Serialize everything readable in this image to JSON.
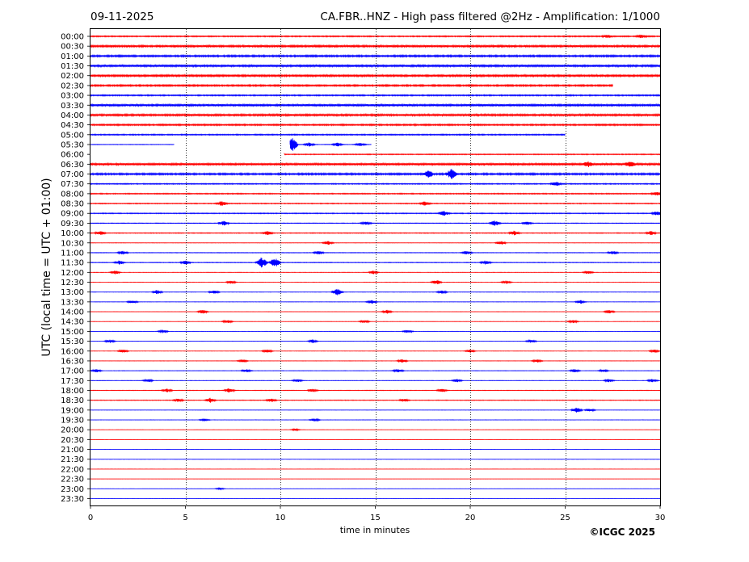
{
  "header": {
    "date": "09-11-2025",
    "title": "CA.FBR..HNZ - High pass filtered @2Hz - Amplification: 1/1000"
  },
  "footer": {
    "copyright": "©ICGC 2025"
  },
  "chart_data": {
    "type": "line",
    "title": "CA.FBR..HNZ - High pass filtered @2Hz - Amplification: 1/1000",
    "xlabel": "time in minutes",
    "ylabel": "UTC (local time = UTC + 01:00)",
    "xlim": [
      0,
      30
    ],
    "x_ticks": [
      0,
      5,
      10,
      15,
      20,
      25,
      30
    ],
    "vertical_grid_at": [
      5,
      10,
      15,
      20,
      25
    ],
    "grid_style": "dotted",
    "row_labels": [
      "00:00",
      "00:30",
      "01:00",
      "01:30",
      "02:00",
      "02:30",
      "03:00",
      "03:30",
      "04:00",
      "04:30",
      "05:00",
      "05:30",
      "06:00",
      "06:30",
      "07:00",
      "07:30",
      "08:00",
      "08:30",
      "09:00",
      "09:30",
      "10:00",
      "10:30",
      "11:00",
      "11:30",
      "12:00",
      "12:30",
      "13:00",
      "13:30",
      "14:00",
      "14:30",
      "15:00",
      "15:30",
      "16:00",
      "16:30",
      "17:00",
      "17:30",
      "18:00",
      "18:30",
      "19:00",
      "19:30",
      "20:00",
      "20:30",
      "21:00",
      "21:30",
      "22:00",
      "22:30",
      "23:00",
      "23:30"
    ],
    "series_colors": [
      "#ff0000",
      "#0000ff"
    ],
    "row_noise_level": [
      0.45,
      0.8,
      0.7,
      0.85,
      0.8,
      0.65,
      0.5,
      0.85,
      0.8,
      0.6,
      0.45,
      0.2,
      0.35,
      0.85,
      0.7,
      0.4,
      0.4,
      0.35,
      0.35,
      0.25,
      0.3,
      0.15,
      0.2,
      0.25,
      0.15,
      0.12,
      0.15,
      0.12,
      0.12,
      0.12,
      0.12,
      0.12,
      0.12,
      0.12,
      0.15,
      0.15,
      0.2,
      0.25,
      0.12,
      0.1,
      0.08,
      0.06,
      0.06,
      0.06,
      0.06,
      0.06,
      0.06,
      0.06
    ],
    "gaps": [
      {
        "row": 5,
        "x": [
          27.5,
          30
        ]
      },
      {
        "row": 10,
        "x": [
          25,
          30
        ]
      },
      {
        "row": 11,
        "x": [
          4.4,
          10.5
        ]
      },
      {
        "row": 11,
        "x": [
          14.8,
          30
        ]
      },
      {
        "row": 12,
        "x": [
          0,
          10.2
        ]
      }
    ],
    "events": [
      {
        "row": 0,
        "x": 27.2,
        "amp": 0.5
      },
      {
        "row": 0,
        "x": 29.0,
        "amp": 0.5
      },
      {
        "row": 11,
        "x": 10.6,
        "amp": 2.5
      },
      {
        "row": 11,
        "x": 11.5,
        "amp": 0.6
      },
      {
        "row": 11,
        "x": 13.0,
        "amp": 0.6
      },
      {
        "row": 11,
        "x": 14.2,
        "amp": 0.6
      },
      {
        "row": 13,
        "x": 26.2,
        "amp": 0.8
      },
      {
        "row": 13,
        "x": 28.4,
        "amp": 0.8
      },
      {
        "row": 14,
        "x": 17.8,
        "amp": 1.0
      },
      {
        "row": 14,
        "x": 19.0,
        "amp": 1.5
      },
      {
        "row": 15,
        "x": 24.5,
        "amp": 0.6
      },
      {
        "row": 16,
        "x": 29.8,
        "amp": 0.6
      },
      {
        "row": 17,
        "x": 6.9,
        "amp": 0.7
      },
      {
        "row": 17,
        "x": 17.6,
        "amp": 0.7
      },
      {
        "row": 18,
        "x": 18.6,
        "amp": 0.7
      },
      {
        "row": 18,
        "x": 29.8,
        "amp": 0.6
      },
      {
        "row": 19,
        "x": 7.0,
        "amp": 0.7
      },
      {
        "row": 19,
        "x": 14.5,
        "amp": 0.6
      },
      {
        "row": 19,
        "x": 21.3,
        "amp": 0.8
      },
      {
        "row": 19,
        "x": 23.0,
        "amp": 0.6
      },
      {
        "row": 20,
        "x": 0.5,
        "amp": 0.6
      },
      {
        "row": 20,
        "x": 9.3,
        "amp": 0.6
      },
      {
        "row": 20,
        "x": 22.3,
        "amp": 0.7
      },
      {
        "row": 20,
        "x": 29.5,
        "amp": 0.6
      },
      {
        "row": 21,
        "x": 12.5,
        "amp": 0.6
      },
      {
        "row": 21,
        "x": 21.6,
        "amp": 0.6
      },
      {
        "row": 22,
        "x": 1.7,
        "amp": 0.6
      },
      {
        "row": 22,
        "x": 12.0,
        "amp": 0.6
      },
      {
        "row": 22,
        "x": 19.8,
        "amp": 0.6
      },
      {
        "row": 22,
        "x": 27.5,
        "amp": 0.6
      },
      {
        "row": 23,
        "x": 1.5,
        "amp": 0.6
      },
      {
        "row": 23,
        "x": 5.0,
        "amp": 0.6
      },
      {
        "row": 23,
        "x": 9.0,
        "amp": 1.8
      },
      {
        "row": 23,
        "x": 9.7,
        "amp": 1.5
      },
      {
        "row": 23,
        "x": 20.8,
        "amp": 0.6
      },
      {
        "row": 24,
        "x": 1.3,
        "amp": 0.6
      },
      {
        "row": 24,
        "x": 14.9,
        "amp": 0.5
      },
      {
        "row": 24,
        "x": 26.2,
        "amp": 0.5
      },
      {
        "row": 25,
        "x": 7.4,
        "amp": 0.5
      },
      {
        "row": 25,
        "x": 18.2,
        "amp": 0.7
      },
      {
        "row": 25,
        "x": 21.9,
        "amp": 0.5
      },
      {
        "row": 26,
        "x": 3.5,
        "amp": 0.6
      },
      {
        "row": 26,
        "x": 6.5,
        "amp": 0.6
      },
      {
        "row": 26,
        "x": 13.0,
        "amp": 1.1
      },
      {
        "row": 26,
        "x": 18.5,
        "amp": 0.5
      },
      {
        "row": 27,
        "x": 2.2,
        "amp": 0.5
      },
      {
        "row": 27,
        "x": 14.8,
        "amp": 0.6
      },
      {
        "row": 27,
        "x": 25.8,
        "amp": 0.6
      },
      {
        "row": 28,
        "x": 5.9,
        "amp": 0.6
      },
      {
        "row": 28,
        "x": 15.6,
        "amp": 0.6
      },
      {
        "row": 28,
        "x": 27.3,
        "amp": 0.6
      },
      {
        "row": 29,
        "x": 7.2,
        "amp": 0.5
      },
      {
        "row": 29,
        "x": 14.4,
        "amp": 0.5
      },
      {
        "row": 29,
        "x": 25.4,
        "amp": 0.5
      },
      {
        "row": 30,
        "x": 3.8,
        "amp": 0.5
      },
      {
        "row": 30,
        "x": 16.7,
        "amp": 0.5
      },
      {
        "row": 31,
        "x": 1.0,
        "amp": 0.5
      },
      {
        "row": 31,
        "x": 11.7,
        "amp": 0.5
      },
      {
        "row": 31,
        "x": 23.2,
        "amp": 0.5
      },
      {
        "row": 32,
        "x": 1.7,
        "amp": 0.5
      },
      {
        "row": 32,
        "x": 9.3,
        "amp": 0.5
      },
      {
        "row": 32,
        "x": 20.0,
        "amp": 0.5
      },
      {
        "row": 32,
        "x": 29.7,
        "amp": 0.5
      },
      {
        "row": 33,
        "x": 8.0,
        "amp": 0.5
      },
      {
        "row": 33,
        "x": 16.4,
        "amp": 0.5
      },
      {
        "row": 33,
        "x": 23.5,
        "amp": 0.5
      },
      {
        "row": 34,
        "x": 0.3,
        "amp": 0.5
      },
      {
        "row": 34,
        "x": 8.2,
        "amp": 0.5
      },
      {
        "row": 34,
        "x": 16.2,
        "amp": 0.5
      },
      {
        "row": 34,
        "x": 25.5,
        "amp": 0.5
      },
      {
        "row": 34,
        "x": 27.0,
        "amp": 0.5
      },
      {
        "row": 35,
        "x": 3.0,
        "amp": 0.5
      },
      {
        "row": 35,
        "x": 10.9,
        "amp": 0.5
      },
      {
        "row": 35,
        "x": 19.3,
        "amp": 0.5
      },
      {
        "row": 35,
        "x": 27.3,
        "amp": 0.5
      },
      {
        "row": 35,
        "x": 29.6,
        "amp": 0.5
      },
      {
        "row": 36,
        "x": 4.0,
        "amp": 0.6
      },
      {
        "row": 36,
        "x": 7.3,
        "amp": 0.7
      },
      {
        "row": 36,
        "x": 11.7,
        "amp": 0.5
      },
      {
        "row": 36,
        "x": 18.5,
        "amp": 0.5
      },
      {
        "row": 37,
        "x": 4.6,
        "amp": 0.5
      },
      {
        "row": 37,
        "x": 6.3,
        "amp": 0.7
      },
      {
        "row": 37,
        "x": 9.5,
        "amp": 0.5
      },
      {
        "row": 37,
        "x": 16.5,
        "amp": 0.5
      },
      {
        "row": 38,
        "x": 25.6,
        "amp": 0.8
      },
      {
        "row": 38,
        "x": 26.3,
        "amp": 0.5
      },
      {
        "row": 39,
        "x": 6.0,
        "amp": 0.4
      },
      {
        "row": 39,
        "x": 11.8,
        "amp": 0.4
      },
      {
        "row": 40,
        "x": 10.8,
        "amp": 0.3
      },
      {
        "row": 46,
        "x": 6.8,
        "amp": 0.3
      }
    ]
  }
}
